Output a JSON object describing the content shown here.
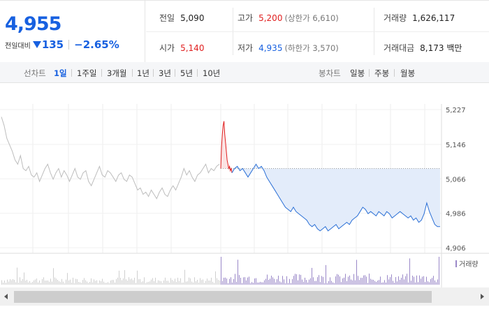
{
  "quote": {
    "current_price": "4,955",
    "change_label": "전일대비",
    "change_value": "135",
    "change_percent": "−2.65%",
    "prev_close": {
      "label": "전일",
      "value": "5,090"
    },
    "high": {
      "label": "고가",
      "value": "5,200",
      "sub": "(상한가 6,610)"
    },
    "volume": {
      "label": "거래량",
      "value": "1,626,117"
    },
    "open": {
      "label": "시가",
      "value": "5,140"
    },
    "low": {
      "label": "저가",
      "value": "4,935",
      "sub": "(하한가 3,570)"
    },
    "trade_amount": {
      "label": "거래대금",
      "value": "8,173 백만"
    }
  },
  "tabs": {
    "line_label": "선차트",
    "line_tabs": [
      "1일",
      "1주일",
      "3개월",
      "1년",
      "3년",
      "5년",
      "10년"
    ],
    "active_line_tab": "1일",
    "candle_label": "봉차트",
    "candle_tabs": [
      "일봉",
      "주봉",
      "월봉"
    ]
  },
  "chart_data": {
    "type": "line",
    "y_ticks": [
      "5,227",
      "5,146",
      "5,066",
      "4,986",
      "4,906"
    ],
    "ylim": [
      4906,
      5227
    ],
    "reference_price": 5090,
    "volume_legend": "거래량",
    "series": [
      {
        "values": [
          5210,
          5190,
          5160,
          5145,
          5130,
          5110,
          5100,
          5120,
          5090,
          5085,
          5095,
          5075,
          5070,
          5080,
          5060,
          5075,
          5090,
          5100,
          5080,
          5065,
          5080,
          5090,
          5070,
          5085,
          5075,
          5060,
          5075,
          5090,
          5070,
          5065,
          5080,
          5085,
          5060,
          5050,
          5065,
          5080,
          5095,
          5075,
          5070,
          5085,
          5080,
          5070,
          5060,
          5075,
          5080,
          5065,
          5060,
          5075,
          5070,
          5055,
          5040,
          5045,
          5030,
          5035,
          5025,
          5040,
          5030,
          5020,
          5035,
          5045,
          5030,
          5025,
          5040,
          5050,
          5040,
          5055,
          5070,
          5090,
          5075,
          5085,
          5070,
          5060,
          5075,
          5080,
          5090,
          5100,
          5080,
          5090,
          5085,
          5095,
          5100
        ]
      },
      {
        "values": [
          5090,
          5140,
          5170,
          5190,
          5200,
          5170,
          5150,
          5130,
          5110,
          5100,
          5090,
          5095,
          5085,
          5090,
          5080
        ]
      },
      {
        "values": [
          5080,
          5090,
          5095,
          5085,
          5090,
          5080,
          5070,
          5080,
          5090,
          5100,
          5090,
          5095,
          5085
        ]
      },
      {
        "values": [
          5085,
          5070,
          5060,
          5050,
          5040,
          5030,
          5020,
          5010,
          5000,
          4995,
          4990,
          5000,
          4990,
          4985,
          4980,
          4975,
          4970,
          4960,
          4955,
          4960,
          4950,
          4945,
          4950,
          4955,
          4945,
          4950,
          4955,
          4960,
          4950,
          4955,
          4960,
          4965,
          4960,
          4970,
          4975,
          4980,
          4990,
          5000,
          4995,
          4985,
          4990,
          4985,
          4980,
          4990,
          4985,
          4980,
          4990,
          4985,
          4975,
          4980,
          4985,
          4990,
          4985,
          4980,
          4975,
          4980,
          4970,
          4975,
          4965,
          4970,
          4985,
          5010,
          4990,
          4975,
          4960,
          4955,
          4955
        ]
      }
    ]
  },
  "scrollbar": {
    "left_icon": "arrow-left-icon",
    "right_icon": "arrow-right-icon"
  }
}
